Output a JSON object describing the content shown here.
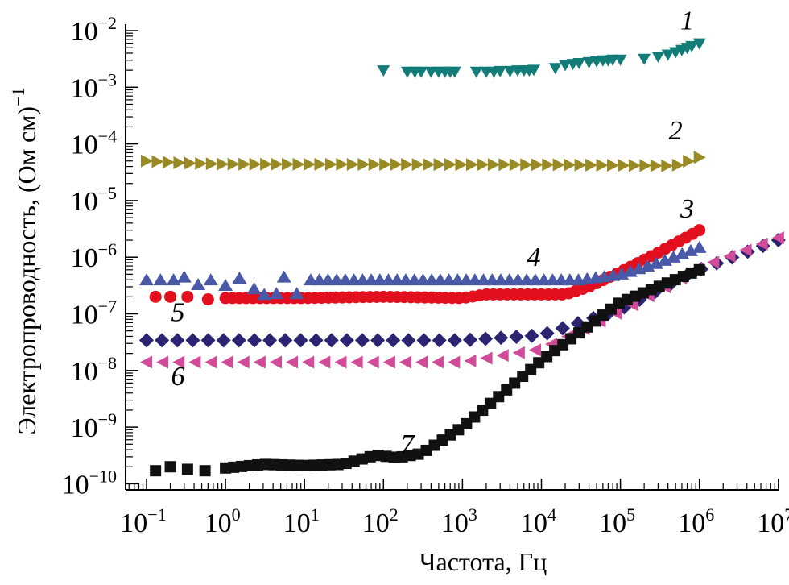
{
  "chart_data": {
    "type": "scatter",
    "title": "",
    "xlabel": "Частота, Гц",
    "ylabel": "Электропроводность, (Ом см)",
    "ylabel_superscript": "−1",
    "xscale": "log",
    "yscale": "log",
    "xlim": [
      0.05,
      10000000
    ],
    "ylim": [
      6e-11,
      0.015
    ],
    "grid": false,
    "legend": "inline numeric labels",
    "x_ticks": [
      {
        "base": "10",
        "exp": "−1"
      },
      {
        "base": "10",
        "exp": "0"
      },
      {
        "base": "10",
        "exp": "1"
      },
      {
        "base": "10",
        "exp": "2"
      },
      {
        "base": "10",
        "exp": "3"
      },
      {
        "base": "10",
        "exp": "4"
      },
      {
        "base": "10",
        "exp": "5"
      },
      {
        "base": "10",
        "exp": "6"
      },
      {
        "base": "10",
        "exp": "7"
      }
    ],
    "x_tick_values": [
      -1,
      0,
      1,
      2,
      3,
      4,
      5,
      6,
      7
    ],
    "y_ticks": [
      {
        "base": "10",
        "exp": "−2"
      },
      {
        "base": "10",
        "exp": "−3"
      },
      {
        "base": "10",
        "exp": "−4"
      },
      {
        "base": "10",
        "exp": "−5"
      },
      {
        "base": "10",
        "exp": "−6"
      },
      {
        "base": "10",
        "exp": "−7"
      },
      {
        "base": "10",
        "exp": "−8"
      },
      {
        "base": "10",
        "exp": "−9"
      },
      {
        "base": "10",
        "exp": "−10"
      }
    ],
    "y_tick_values": [
      -2,
      -3,
      -4,
      -5,
      -6,
      -7,
      -8,
      -9,
      -10
    ],
    "series": [
      {
        "name": "1",
        "marker": "triangle-down",
        "color": "#127c79",
        "points": [
          [
            100,
            0.002
          ],
          [
            200,
            0.0019
          ],
          [
            250,
            0.0019
          ],
          [
            300,
            0.0019
          ],
          [
            400,
            0.0019
          ],
          [
            500,
            0.0019
          ],
          [
            600,
            0.0019
          ],
          [
            700,
            0.0019
          ],
          [
            800,
            0.0019
          ],
          [
            1500,
            0.0019
          ],
          [
            2000,
            0.0019
          ],
          [
            2500,
            0.0019
          ],
          [
            3000,
            0.00195
          ],
          [
            4000,
            0.00195
          ],
          [
            5000,
            0.002
          ],
          [
            6000,
            0.002
          ],
          [
            7000,
            0.002
          ],
          [
            8000,
            0.00205
          ],
          [
            15000,
            0.0022
          ],
          [
            20000,
            0.0025
          ],
          [
            25000,
            0.0026
          ],
          [
            30000,
            0.0027
          ],
          [
            40000,
            0.0028
          ],
          [
            50000,
            0.0029
          ],
          [
            60000,
            0.003
          ],
          [
            70000,
            0.003
          ],
          [
            80000,
            0.0031
          ],
          [
            100000,
            0.0031
          ],
          [
            200000,
            0.0032
          ],
          [
            300000,
            0.0035
          ],
          [
            400000,
            0.0038
          ],
          [
            500000,
            0.0042
          ],
          [
            600000,
            0.0046
          ],
          [
            700000,
            0.005
          ],
          [
            800000,
            0.0054
          ],
          [
            1000000,
            0.006
          ]
        ]
      },
      {
        "name": "2",
        "marker": "triangle-right",
        "color": "#9a8a24",
        "start": 0.1,
        "end": 1000000,
        "count": 52,
        "profile": [
          [
            0.1,
            5e-05
          ],
          [
            0.3,
            4.6e-05
          ],
          [
            1,
            4.4e-05
          ],
          [
            10000,
            4.3e-05
          ],
          [
            500000,
            4.1e-05
          ],
          [
            1000000,
            5.8e-05
          ]
        ]
      },
      {
        "name": "3",
        "marker": "circle",
        "color": "#e2101f",
        "points": [
          [
            0.13,
            2e-07
          ],
          [
            0.2,
            2e-07
          ],
          [
            0.33,
            2e-07
          ],
          [
            0.6,
            1.8e-07
          ]
        ],
        "start": 1,
        "end": 1000000,
        "count": 70,
        "profile": [
          [
            1,
            1.9e-07
          ],
          [
            10,
            1.9e-07
          ],
          [
            100,
            2e-07
          ],
          [
            1000,
            1.9e-07
          ],
          [
            2000,
            2.2e-07
          ],
          [
            20000,
            2.2e-07
          ],
          [
            40000,
            3e-07
          ],
          [
            100000,
            5.5e-07
          ],
          [
            300000,
            1.2e-06
          ],
          [
            1000000,
            3e-06
          ]
        ]
      },
      {
        "name": "4",
        "marker": "triangle-up",
        "color": "#4a58a8",
        "points": [
          [
            0.1,
            4e-07
          ],
          [
            0.15,
            4e-07
          ],
          [
            0.22,
            4e-07
          ],
          [
            0.3,
            4.5e-07
          ],
          [
            0.45,
            3.3e-07
          ],
          [
            0.65,
            4e-07
          ],
          [
            1.0,
            3.2e-07
          ],
          [
            1.5,
            4.3e-07
          ],
          [
            2.3,
            2.8e-07
          ],
          [
            3.1,
            2.2e-07
          ],
          [
            4.4,
            2.3e-07
          ],
          [
            5.5,
            4.5e-07
          ],
          [
            8.0,
            2.3e-07
          ]
        ],
        "start": 12,
        "end": 1000000,
        "count": 46,
        "profile": [
          [
            12,
            4e-07
          ],
          [
            10000,
            4e-07
          ],
          [
            30000,
            4e-07
          ],
          [
            100000,
            5e-07
          ],
          [
            300000,
            8e-07
          ],
          [
            1000000,
            1.5e-06
          ]
        ]
      },
      {
        "name": "5",
        "marker": "diamond",
        "color": "#2b2470",
        "start": 0.1,
        "end": 10000000,
        "count": 42,
        "profile": [
          [
            0.1,
            3.4e-08
          ],
          [
            1000,
            3.4e-08
          ],
          [
            10000,
            4.2e-08
          ],
          [
            100000,
            1.2e-07
          ],
          [
            1000000,
            6e-07
          ],
          [
            10000000,
            2e-06
          ]
        ]
      },
      {
        "name": "6",
        "marker": "triangle-left",
        "color": "#d24b98",
        "start": 0.1,
        "end": 10000000,
        "count": 40,
        "profile": [
          [
            0.1,
            1.4e-08
          ],
          [
            1000,
            1.4e-08
          ],
          [
            10000,
            2.4e-08
          ],
          [
            100000,
            1.1e-07
          ],
          [
            1000000,
            6.5e-07
          ],
          [
            10000000,
            2.2e-06
          ]
        ]
      },
      {
        "name": "7",
        "marker": "square",
        "color": "#111111",
        "points": [
          [
            0.13,
            1.7e-10
          ],
          [
            0.2,
            2e-10
          ],
          [
            0.33,
            1.8e-10
          ],
          [
            0.55,
            1.7e-10
          ]
        ],
        "start": 1,
        "end": 1000000,
        "count": 60,
        "profile": [
          [
            1,
            1.9e-10
          ],
          [
            3,
            2.2e-10
          ],
          [
            10,
            2.1e-10
          ],
          [
            30,
            2.2e-10
          ],
          [
            80,
            3.2e-10
          ],
          [
            150,
            2.9e-10
          ],
          [
            300,
            3.4e-10
          ],
          [
            1000,
            1e-09
          ],
          [
            10000,
            1.5e-08
          ],
          [
            100000,
            1.6e-07
          ],
          [
            1000000,
            6e-07
          ]
        ]
      }
    ],
    "annotations": [
      {
        "text": "1",
        "x": 700000,
        "y": 0.0105
      },
      {
        "text": "2",
        "x": 500000,
        "y": 0.00012
      },
      {
        "text": "3",
        "x": 700000,
        "y": 5e-06
      },
      {
        "text": "4",
        "x": 8000,
        "y": 7e-07
      },
      {
        "text": "5",
        "x": 0.25,
        "y": 7.5e-08
      },
      {
        "text": "6",
        "x": 0.25,
        "y": 5.5e-09
      },
      {
        "text": "7",
        "x": 200,
        "y": 3.5e-10
      }
    ]
  }
}
